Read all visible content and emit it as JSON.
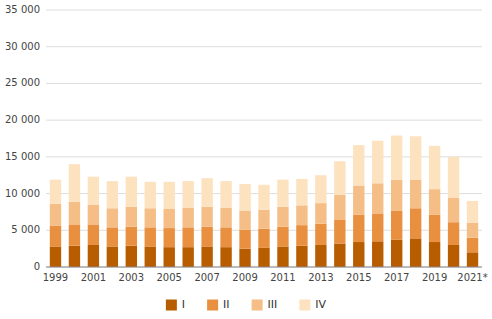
{
  "chart_data": {
    "type": "bar",
    "stacked": true,
    "categories": [
      "1999",
      null,
      "2001",
      null,
      "2003",
      null,
      "2005",
      null,
      "2007",
      null,
      "2009",
      null,
      "2011",
      null,
      "2013",
      null,
      "2015",
      null,
      "2017",
      null,
      "2019",
      null,
      "2021*"
    ],
    "series": [
      {
        "name": "I",
        "color": "#b85c00",
        "values": [
          2800,
          2900,
          3000,
          2800,
          2900,
          2800,
          2700,
          2700,
          2800,
          2700,
          2500,
          2600,
          2800,
          2900,
          3000,
          3200,
          3400,
          3500,
          3700,
          3900,
          3400,
          3000,
          2000
        ]
      },
      {
        "name": "II",
        "color": "#e89040",
        "values": [
          2800,
          2900,
          2800,
          2600,
          2600,
          2600,
          2600,
          2700,
          2700,
          2700,
          2600,
          2600,
          2700,
          2800,
          2900,
          3200,
          3700,
          3800,
          4000,
          4100,
          3700,
          3100,
          2000
        ]
      },
      {
        "name": "III",
        "color": "#f5be86",
        "values": [
          3000,
          3100,
          2700,
          2600,
          2700,
          2600,
          2600,
          2700,
          2700,
          2700,
          2600,
          2600,
          2700,
          2700,
          2800,
          3400,
          4000,
          4100,
          4200,
          3900,
          3500,
          3300,
          2000
        ]
      },
      {
        "name": "IV",
        "color": "#fde2c0",
        "values": [
          3300,
          5100,
          3800,
          3700,
          4100,
          3600,
          3700,
          3600,
          3900,
          3600,
          3600,
          3400,
          3700,
          3600,
          3800,
          4600,
          5500,
          5800,
          6000,
          5900,
          5900,
          5600,
          3000
        ]
      }
    ],
    "ylim": [
      0,
      35000
    ],
    "yticks": [
      0,
      {
        "value": 5000,
        "label": "5 000"
      },
      {
        "value": 10000,
        "label": "10 000"
      },
      {
        "value": 15000,
        "label": "15 000"
      },
      {
        "value": 20000,
        "label": "20 000"
      },
      {
        "value": 25000,
        "label": "25 000"
      },
      {
        "value": 30000,
        "label": "30 000"
      },
      {
        "value": 35000,
        "label": "35 000"
      }
    ],
    "grid": true,
    "legend": "bottom"
  }
}
